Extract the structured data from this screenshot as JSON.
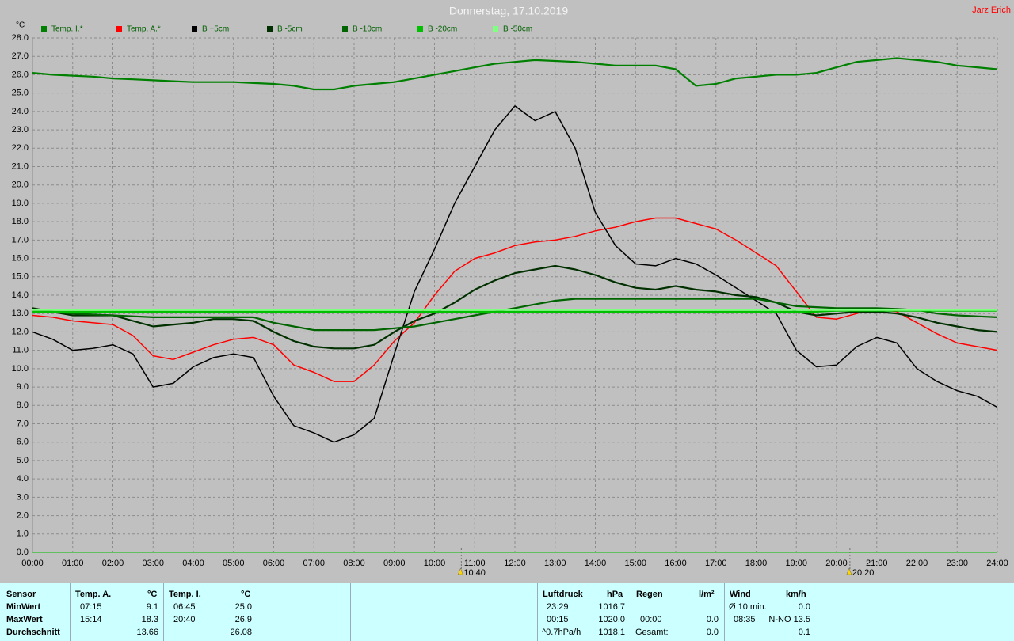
{
  "chart_data": {
    "type": "line",
    "title": "Donnerstag, 17.10.2019",
    "author": "Jarz Erich",
    "y_label": "°C",
    "x": [
      0,
      0.5,
      1,
      1.5,
      2,
      2.5,
      3,
      3.5,
      4,
      4.5,
      5,
      5.5,
      6,
      6.5,
      7,
      7.5,
      8,
      8.5,
      9,
      9.5,
      10,
      10.5,
      11,
      11.5,
      12,
      12.5,
      13,
      13.5,
      14,
      14.5,
      15,
      15.5,
      16,
      16.5,
      17,
      17.5,
      18,
      18.5,
      19,
      19.5,
      20,
      20.5,
      21,
      21.5,
      22,
      22.5,
      23,
      23.5,
      24
    ],
    "xlim": [
      0,
      24
    ],
    "xticks": [
      {
        "value": 0,
        "label": "00:00"
      },
      {
        "value": 1,
        "label": "01:00"
      },
      {
        "value": 2,
        "label": "02:00"
      },
      {
        "value": 3,
        "label": "03:00"
      },
      {
        "value": 4,
        "label": "04:00"
      },
      {
        "value": 5,
        "label": "05:00"
      },
      {
        "value": 6,
        "label": "06:00"
      },
      {
        "value": 7,
        "label": "07:00"
      },
      {
        "value": 8,
        "label": "08:00"
      },
      {
        "value": 9,
        "label": "09:00"
      },
      {
        "value": 10,
        "label": "10:00"
      },
      {
        "value": 11,
        "label": "11:00"
      },
      {
        "value": 12,
        "label": "12:00"
      },
      {
        "value": 13,
        "label": "13:00"
      },
      {
        "value": 14,
        "label": "14:00"
      },
      {
        "value": 15,
        "label": "15:00"
      },
      {
        "value": 16,
        "label": "16:00"
      },
      {
        "value": 17,
        "label": "17:00"
      },
      {
        "value": 18,
        "label": "18:00"
      },
      {
        "value": 19,
        "label": "19:00"
      },
      {
        "value": 20,
        "label": "20:00"
      },
      {
        "value": 21,
        "label": "21:00"
      },
      {
        "value": 22,
        "label": "22:00"
      },
      {
        "value": 23,
        "label": "23:00"
      },
      {
        "value": 24,
        "label": "24:00"
      }
    ],
    "ylim": [
      0,
      28
    ],
    "yticks": [
      {
        "value": 0,
        "label": "0.0"
      },
      {
        "value": 1,
        "label": "1.0"
      },
      {
        "value": 2,
        "label": "2.0"
      },
      {
        "value": 3,
        "label": "3.0"
      },
      {
        "value": 4,
        "label": "4.0"
      },
      {
        "value": 5,
        "label": "5.0"
      },
      {
        "value": 6,
        "label": "6.0"
      },
      {
        "value": 7,
        "label": "7.0"
      },
      {
        "value": 8,
        "label": "8.0"
      },
      {
        "value": 9,
        "label": "9.0"
      },
      {
        "value": 10,
        "label": "10.0"
      },
      {
        "value": 11,
        "label": "11.0"
      },
      {
        "value": 12,
        "label": "12.0"
      },
      {
        "value": 13,
        "label": "13.0"
      },
      {
        "value": 14,
        "label": "14.0"
      },
      {
        "value": 15,
        "label": "15.0"
      },
      {
        "value": 16,
        "label": "16.0"
      },
      {
        "value": 17,
        "label": "17.0"
      },
      {
        "value": 18,
        "label": "18.0"
      },
      {
        "value": 19,
        "label": "19.0"
      },
      {
        "value": 20,
        "label": "20.0"
      },
      {
        "value": 21,
        "label": "21.0"
      },
      {
        "value": 22,
        "label": "22.0"
      },
      {
        "value": 23,
        "label": "23.0"
      },
      {
        "value": 24,
        "label": "24.0"
      },
      {
        "value": 25,
        "label": "25.0"
      },
      {
        "value": 26,
        "label": "26.0"
      },
      {
        "value": 27,
        "label": "27.0"
      },
      {
        "value": 28,
        "label": "28.0"
      }
    ],
    "grid": true,
    "legend": "top",
    "annotations": [
      {
        "x": 10.667,
        "label": "10:40"
      },
      {
        "x": 20.333,
        "label": "20:20"
      }
    ],
    "series": [
      {
        "name": "Temp. I.*",
        "color": "#008000",
        "values": [
          26.1,
          26.0,
          25.95,
          25.9,
          25.8,
          25.75,
          25.7,
          25.65,
          25.6,
          25.6,
          25.6,
          25.55,
          25.5,
          25.4,
          25.2,
          25.2,
          25.4,
          25.5,
          25.6,
          25.8,
          26.0,
          26.2,
          26.4,
          26.6,
          26.7,
          26.8,
          26.75,
          26.7,
          26.6,
          26.5,
          26.5,
          26.5,
          26.3,
          25.4,
          25.5,
          25.8,
          25.9,
          26.0,
          26.0,
          26.1,
          26.4,
          26.7,
          26.8,
          26.9,
          26.8,
          26.7,
          26.5,
          26.4,
          26.3
        ]
      },
      {
        "name": "Temp. A.*",
        "color": "#ff0000",
        "values": [
          12.9,
          12.8,
          12.6,
          12.5,
          12.4,
          11.8,
          10.7,
          10.5,
          10.9,
          11.3,
          11.6,
          11.7,
          11.3,
          10.2,
          9.8,
          9.3,
          9.3,
          10.2,
          11.5,
          12.5,
          14.0,
          15.3,
          16.0,
          16.3,
          16.7,
          16.9,
          17.0,
          17.2,
          17.5,
          17.7,
          18.0,
          18.2,
          18.2,
          17.9,
          17.6,
          17.0,
          16.3,
          15.6,
          14.2,
          12.8,
          12.7,
          13.0,
          13.3,
          13.1,
          12.5,
          11.9,
          11.4,
          11.2,
          11.0
        ]
      },
      {
        "name": "B +5cm",
        "color": "#000000",
        "values": [
          12.0,
          11.6,
          11.0,
          11.1,
          11.3,
          10.8,
          9.0,
          9.2,
          10.1,
          10.6,
          10.8,
          10.6,
          8.5,
          6.9,
          6.5,
          6.0,
          6.4,
          7.3,
          10.8,
          14.2,
          16.5,
          19.0,
          21.0,
          23.0,
          24.3,
          23.5,
          24.0,
          22.0,
          18.5,
          16.7,
          15.7,
          15.6,
          16.0,
          15.7,
          15.1,
          14.4,
          13.7,
          13.0,
          11.0,
          10.1,
          10.2,
          11.2,
          11.7,
          11.4,
          10.0,
          9.3,
          8.8,
          8.5,
          7.9
        ]
      },
      {
        "name": "B -5cm",
        "color": "#003000",
        "values": [
          13.3,
          13.1,
          12.9,
          12.9,
          12.9,
          12.6,
          12.3,
          12.4,
          12.5,
          12.7,
          12.7,
          12.6,
          12.0,
          11.5,
          11.2,
          11.1,
          11.1,
          11.3,
          12.0,
          12.6,
          13.0,
          13.6,
          14.3,
          14.8,
          15.2,
          15.4,
          15.6,
          15.4,
          15.1,
          14.7,
          14.4,
          14.3,
          14.5,
          14.3,
          14.2,
          14.0,
          13.9,
          13.6,
          13.1,
          12.9,
          13.0,
          13.1,
          13.1,
          13.0,
          12.8,
          12.5,
          12.3,
          12.1,
          12.0
        ]
      },
      {
        "name": "B -10cm",
        "color": "#006400",
        "values": [
          13.2,
          13.1,
          13.0,
          12.95,
          12.9,
          12.85,
          12.8,
          12.8,
          12.8,
          12.8,
          12.8,
          12.8,
          12.5,
          12.3,
          12.1,
          12.1,
          12.1,
          12.1,
          12.2,
          12.3,
          12.5,
          12.7,
          12.9,
          13.1,
          13.3,
          13.5,
          13.7,
          13.8,
          13.8,
          13.8,
          13.8,
          13.8,
          13.8,
          13.8,
          13.8,
          13.8,
          13.8,
          13.6,
          13.4,
          13.35,
          13.3,
          13.3,
          13.3,
          13.25,
          13.2,
          13.0,
          12.9,
          12.85,
          12.8
        ]
      },
      {
        "name": "B -20cm",
        "color": "#00c000",
        "values": [
          13.1,
          13.1,
          13.1,
          13.1,
          13.1,
          13.1,
          13.1,
          13.1,
          13.1,
          13.1,
          13.1,
          13.1,
          13.1,
          13.1,
          13.1,
          13.1,
          13.1,
          13.1,
          13.1,
          13.1,
          13.1,
          13.1,
          13.1,
          13.1,
          13.1,
          13.1,
          13.1,
          13.1,
          13.1,
          13.1,
          13.1,
          13.1,
          13.1,
          13.1,
          13.1,
          13.1,
          13.1,
          13.1,
          13.1,
          13.1,
          13.15,
          13.15,
          13.15,
          13.15,
          13.15,
          13.15,
          13.15,
          13.15,
          13.15
        ]
      },
      {
        "name": "B -50cm",
        "color": "#80ff80",
        "values": [
          13.2,
          13.2,
          13.2,
          13.2,
          13.2,
          13.2,
          13.2,
          13.2,
          13.2,
          13.2,
          13.2,
          13.2,
          13.2,
          13.2,
          13.2,
          13.2,
          13.2,
          13.2,
          13.2,
          13.2,
          13.2,
          13.2,
          13.2,
          13.2,
          13.2,
          13.2,
          13.2,
          13.2,
          13.2,
          13.2,
          13.2,
          13.2,
          13.2,
          13.2,
          13.2,
          13.2,
          13.2,
          13.2,
          13.2,
          13.2,
          13.2,
          13.2,
          13.2,
          13.2,
          13.2,
          13.2,
          13.2,
          13.2,
          13.2
        ]
      }
    ]
  },
  "stats": {
    "row_labels": [
      "Sensor",
      "MinWert",
      "MaxWert",
      "Durchschnitt"
    ],
    "temp_a": {
      "header": "Temp. A.",
      "unit": "°C",
      "min_time": "07:15",
      "min": "9.1",
      "max_time": "15:14",
      "max": "18.3",
      "avg": "13.66"
    },
    "temp_i": {
      "header": "Temp. I.",
      "unit": "°C",
      "min_time": "06:45",
      "min": "25.0",
      "max_time": "20:40",
      "max": "26.9",
      "avg": "26.08"
    },
    "pressure": {
      "header": "Luftdruck",
      "unit": "hPa",
      "min_time": "23:29",
      "min": "1016.7",
      "max_time": "00:15",
      "max": "1020.0",
      "trend": "^0.7hPa/h",
      "avg": "1018.1"
    },
    "rain": {
      "header": "Regen",
      "unit": "l/m²",
      "max_time": "00:00",
      "max": "0.0",
      "total_label": "Gesamt:",
      "total": "0.0"
    },
    "wind": {
      "header": "Wind",
      "unit": "km/h",
      "avg_label": "Ø 10 min.",
      "avg10": "0.0",
      "max_time": "08:35",
      "max": "N-NO 13.5",
      "avg": "0.1"
    }
  }
}
